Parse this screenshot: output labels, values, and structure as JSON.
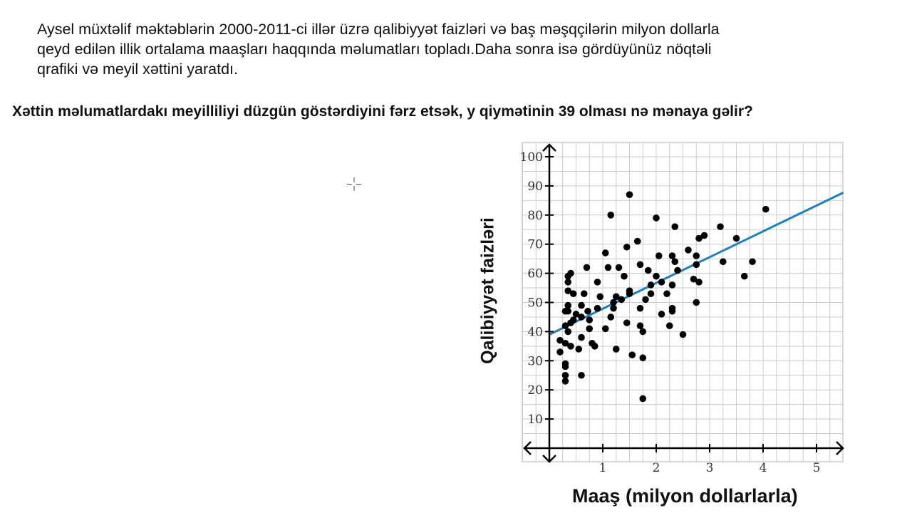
{
  "intro": {
    "line1": "Aysel müxtəlif məktəblərin 2000-2011-ci illər üzrə qalibiyyət faizləri və baş məşqçilərin milyon dollarla",
    "line2": "qeyd edilən illik ortalama maaşları haqqında məlumatları topladı.Daha sonra isə gördüyünüz nöqtəli",
    "line3": "qrafiki və meyil xəttini yaratdı."
  },
  "question": "Xəttin məlumatlardakı meyilliliyi düzgün göstərdiyini fərz etsək, y qiymətinin 39 olması nə mənaya gəlir?",
  "colors": {
    "points": "#000000",
    "trend_line": "#1f7fc1",
    "grid": "#cccccc",
    "axis": "#000000"
  },
  "chart_data": {
    "type": "scatter",
    "xlabel": "Maaş (milyon dollarlarla)",
    "ylabel": "Qalibiyyət faizləri",
    "x_ticks": [
      "1",
      "2",
      "3",
      "4",
      "5"
    ],
    "y_ticks": [
      "10",
      "20",
      "30",
      "40",
      "50",
      "60",
      "70",
      "80",
      "90",
      "100"
    ],
    "xlim": [
      -0.5,
      5.5
    ],
    "ylim": [
      -5,
      105
    ],
    "grid": true,
    "trend_line": {
      "intercept": 39,
      "slope": 8.85,
      "x_start": 0,
      "x_end": 5.5
    },
    "points": [
      [
        0.2,
        37
      ],
      [
        0.2,
        33
      ],
      [
        0.3,
        47
      ],
      [
        0.3,
        42
      ],
      [
        0.3,
        36
      ],
      [
        0.3,
        29
      ],
      [
        0.3,
        28
      ],
      [
        0.3,
        25
      ],
      [
        0.3,
        23
      ],
      [
        0.35,
        59
      ],
      [
        0.35,
        57
      ],
      [
        0.35,
        54
      ],
      [
        0.35,
        49
      ],
      [
        0.35,
        47
      ],
      [
        0.35,
        40
      ],
      [
        0.4,
        60
      ],
      [
        0.4,
        43
      ],
      [
        0.4,
        35
      ],
      [
        0.45,
        53
      ],
      [
        0.45,
        44
      ],
      [
        0.5,
        46
      ],
      [
        0.55,
        34
      ],
      [
        0.6,
        49
      ],
      [
        0.6,
        45
      ],
      [
        0.6,
        38
      ],
      [
        0.6,
        25
      ],
      [
        0.65,
        53
      ],
      [
        0.7,
        62
      ],
      [
        0.72,
        47
      ],
      [
        0.75,
        44
      ],
      [
        0.75,
        41
      ],
      [
        0.8,
        36
      ],
      [
        0.85,
        35
      ],
      [
        0.9,
        57
      ],
      [
        0.9,
        48
      ],
      [
        0.95,
        52
      ],
      [
        1.05,
        67
      ],
      [
        1.05,
        41
      ],
      [
        1.1,
        62
      ],
      [
        1.15,
        45
      ],
      [
        1.15,
        80
      ],
      [
        1.2,
        48
      ],
      [
        1.2,
        50
      ],
      [
        1.25,
        52
      ],
      [
        1.25,
        34
      ],
      [
        1.3,
        62
      ],
      [
        1.35,
        51
      ],
      [
        1.4,
        59
      ],
      [
        1.45,
        43
      ],
      [
        1.45,
        69
      ],
      [
        1.5,
        53
      ],
      [
        1.5,
        54
      ],
      [
        1.5,
        87
      ],
      [
        1.55,
        32
      ],
      [
        1.65,
        71
      ],
      [
        1.7,
        63
      ],
      [
        1.7,
        48
      ],
      [
        1.7,
        42
      ],
      [
        1.75,
        40
      ],
      [
        1.75,
        31
      ],
      [
        1.75,
        17
      ],
      [
        1.8,
        51
      ],
      [
        1.85,
        61
      ],
      [
        1.9,
        56
      ],
      [
        1.9,
        53
      ],
      [
        2.0,
        59
      ],
      [
        2.0,
        79
      ],
      [
        2.05,
        66
      ],
      [
        2.1,
        57
      ],
      [
        2.1,
        46
      ],
      [
        2.2,
        53
      ],
      [
        2.25,
        42
      ],
      [
        2.3,
        48
      ],
      [
        2.3,
        47
      ],
      [
        2.3,
        56
      ],
      [
        2.3,
        66
      ],
      [
        2.35,
        76
      ],
      [
        2.35,
        64
      ],
      [
        2.4,
        61
      ],
      [
        2.5,
        39
      ],
      [
        2.6,
        68
      ],
      [
        2.7,
        58
      ],
      [
        2.75,
        63
      ],
      [
        2.75,
        66
      ],
      [
        2.75,
        50
      ],
      [
        2.8,
        72
      ],
      [
        2.8,
        57
      ],
      [
        2.9,
        73
      ],
      [
        3.2,
        76
      ],
      [
        3.25,
        64
      ],
      [
        3.5,
        72
      ],
      [
        3.65,
        59
      ],
      [
        3.8,
        64
      ],
      [
        4.05,
        82
      ]
    ]
  }
}
